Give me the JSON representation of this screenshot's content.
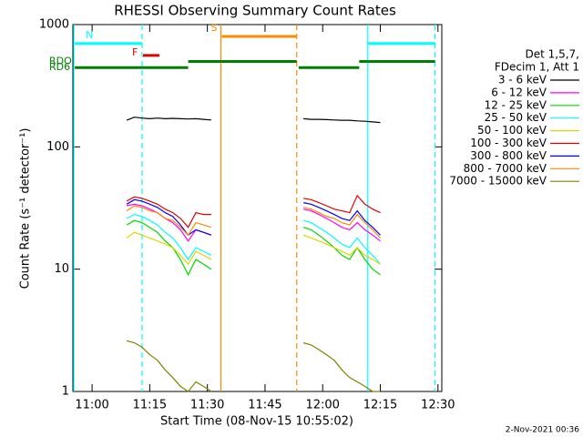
{
  "chart_data": {
    "type": "line",
    "title": "RHESSI Observing Summary Count Rates",
    "xlabel": "Start Time (08-Nov-15 10:55:02)",
    "ylabel": "Count Rate (s⁻¹ detector⁻¹)",
    "footer": "2-Nov-2021 00:36",
    "legend_header": [
      "Det 1,5,7,",
      "FDecim 1, Att 1"
    ],
    "log_y": true,
    "xlim": [
      655,
      751
    ],
    "ylim": [
      1,
      1000
    ],
    "xticks": [
      {
        "value": 660,
        "label": "11:00"
      },
      {
        "value": 675,
        "label": "11:15"
      },
      {
        "value": 690,
        "label": "11:30"
      },
      {
        "value": 705,
        "label": "11:45"
      },
      {
        "value": 720,
        "label": "12:00"
      },
      {
        "value": 735,
        "label": "12:15"
      },
      {
        "value": 750,
        "label": "12:30"
      }
    ],
    "yticks": [
      1,
      10,
      100,
      1000
    ],
    "x": [
      669,
      671,
      673,
      675,
      677,
      679,
      681,
      683,
      685,
      687,
      689,
      691,
      703,
      715,
      717,
      719,
      721,
      723,
      725,
      727,
      729,
      731,
      733,
      735
    ],
    "series": [
      {
        "name": "3 - 6 keV",
        "color": "#000000",
        "values": [
          165,
          175,
          172,
          170,
          172,
          170,
          171,
          170,
          169,
          170,
          168,
          166,
          null,
          170,
          168,
          168,
          167,
          166,
          165,
          165,
          163,
          162,
          160,
          158
        ]
      },
      {
        "name": "6 - 12 keV",
        "color": "#ff00ff",
        "values": [
          33,
          34,
          33,
          31,
          29,
          26,
          24,
          21,
          17,
          21,
          20,
          19,
          null,
          31,
          30,
          28,
          26,
          24,
          22,
          21,
          24,
          21,
          19,
          17
        ]
      },
      {
        "name": "12 - 25 keV",
        "color": "#00d800",
        "values": [
          23,
          25,
          24,
          22,
          20,
          17,
          15,
          12,
          9,
          12,
          11,
          10,
          null,
          22,
          21,
          19,
          17,
          15,
          13,
          12,
          15,
          12,
          10,
          9
        ]
      },
      {
        "name": "25 - 50 keV",
        "color": "#00ffff",
        "values": [
          26,
          28,
          27,
          25,
          23,
          20,
          18,
          15,
          12,
          15,
          14,
          13,
          null,
          25,
          24,
          22,
          20,
          18,
          16,
          15,
          18,
          15,
          13,
          11
        ]
      },
      {
        "name": "50 - 100 keV",
        "color": "#d8d800",
        "values": [
          18,
          20,
          19,
          18,
          17,
          16,
          15,
          13,
          11,
          14,
          13,
          12,
          null,
          19,
          18,
          17,
          16,
          15,
          14,
          13,
          15,
          13,
          12,
          11
        ]
      },
      {
        "name": "100 - 300 keV",
        "color": "#e00000",
        "values": [
          36,
          39,
          38,
          36,
          34,
          31,
          29,
          26,
          22,
          29,
          28,
          28,
          null,
          38,
          37,
          35,
          33,
          31,
          30,
          29,
          40,
          34,
          31,
          29
        ]
      },
      {
        "name": "300 - 800 keV",
        "color": "#0000ff",
        "values": [
          34,
          37,
          36,
          34,
          32,
          29,
          27,
          23,
          19,
          21,
          20,
          19,
          null,
          35,
          34,
          32,
          30,
          28,
          26,
          25,
          30,
          25,
          22,
          19
        ]
      },
      {
        "name": "800 - 7000 keV",
        "color": "#ff8800",
        "values": [
          30,
          33,
          32,
          30,
          29,
          26,
          25,
          22,
          19,
          24,
          23,
          22,
          null,
          32,
          31,
          29,
          27,
          26,
          24,
          23,
          28,
          24,
          21,
          18
        ]
      },
      {
        "name": "7000 - 15000 keV",
        "color": "#808000",
        "values": [
          2.6,
          2.5,
          2.3,
          2.0,
          1.8,
          1.5,
          1.3,
          1.1,
          1.0,
          1.2,
          1.1,
          1.0,
          null,
          2.5,
          2.4,
          2.2,
          2.0,
          1.8,
          1.5,
          1.3,
          1.2,
          1.1,
          1.0,
          1.0
        ]
      }
    ],
    "flags": [
      {
        "label": "N",
        "color": "#00ffff",
        "level": 700,
        "segments": [
          [
            655.5,
            673
          ],
          [
            731.75,
            749.25
          ]
        ]
      },
      {
        "label": "F",
        "color": "#e00000",
        "level": 560,
        "segments": [
          [
            673.25,
            677.5
          ]
        ]
      },
      {
        "label": "S",
        "color": "#ff8800",
        "level": 800,
        "segments": [
          [
            693.75,
            713.25
          ]
        ]
      },
      {
        "label": "RDO",
        "color": "#008000",
        "level": 500,
        "segments": [
          [
            685,
            713.25
          ],
          [
            729.5,
            749.25
          ]
        ]
      },
      {
        "label": "RD6",
        "color": "#008000",
        "level": 445,
        "segments": [
          [
            655.5,
            685
          ],
          [
            713.75,
            729.5
          ]
        ]
      }
    ],
    "vlines": [
      {
        "x": 655.25,
        "color": "#00ffff",
        "dashed": false
      },
      {
        "x": 673,
        "color": "#00ffff",
        "dashed": true
      },
      {
        "x": 731.75,
        "color": "#00ffff",
        "dashed": false
      },
      {
        "x": 749.25,
        "color": "#00ffff",
        "dashed": true
      },
      {
        "x": 693.5,
        "color": "#ff8800",
        "dashed": false
      },
      {
        "x": 713.25,
        "color": "#ff8800",
        "dashed": true
      }
    ]
  }
}
